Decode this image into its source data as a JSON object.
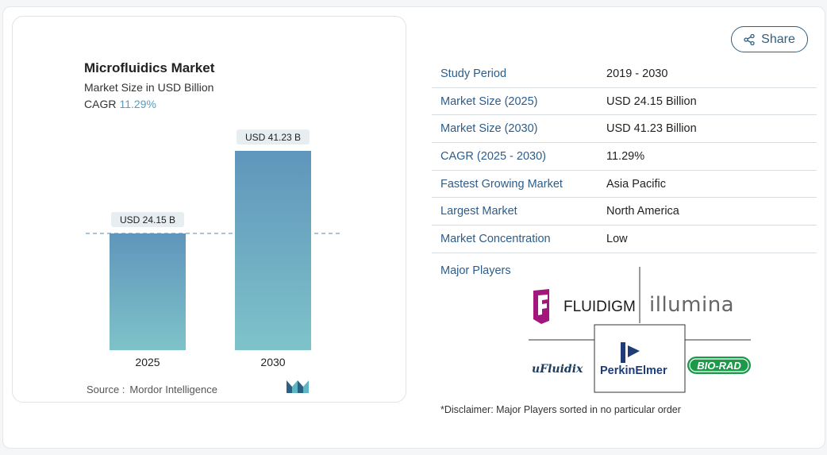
{
  "chart_data": {
    "type": "bar",
    "title": "Microfluidics Market",
    "subtitle": "Market Size in USD Billion",
    "cagr_label": "CAGR",
    "cagr_value": "11.29%",
    "categories": [
      "2025",
      "2030"
    ],
    "values": [
      24.15,
      41.23
    ],
    "data_labels": [
      "USD 24.15 B",
      "USD 41.23 B"
    ],
    "ylim": [
      0,
      45
    ],
    "bar_colors": {
      "top": "#5f95bb",
      "bottom": "#7ec3c9"
    },
    "reference_line": {
      "value": 24.15,
      "color": "#5a9bbd",
      "style": "dashed"
    },
    "grid": false,
    "legend": "none"
  },
  "source": {
    "label": "Source :",
    "name": "Mordor Intelligence"
  },
  "share": {
    "label": "Share",
    "icon": "share-icon"
  },
  "info_table": [
    {
      "key": "Study Period",
      "value": "2019 - 2030"
    },
    {
      "key": "Market Size (2025)",
      "value": "USD 24.15 Billion"
    },
    {
      "key": "Market Size (2030)",
      "value": "USD 41.23 Billion"
    },
    {
      "key": "CAGR (2025 - 2030)",
      "value": "11.29%"
    },
    {
      "key": "Fastest Growing Market",
      "value": "Asia Pacific"
    },
    {
      "key": "Largest Market",
      "value": "North America"
    },
    {
      "key": "Market Concentration",
      "value": "Low"
    }
  ],
  "major_players": {
    "label": "Major Players",
    "logos": [
      "FLUIDIGM",
      "illumina",
      "uFluidix",
      "PerkinElmer",
      "BIO-RAD"
    ]
  },
  "disclaimer": "*Disclaimer: Major Players sorted in no particular order",
  "colors": {
    "accent": "#2c5d8a",
    "cagr": "#5a9bbd",
    "biorad": "#1b9a4a",
    "fluidigm": "#a3167c"
  }
}
